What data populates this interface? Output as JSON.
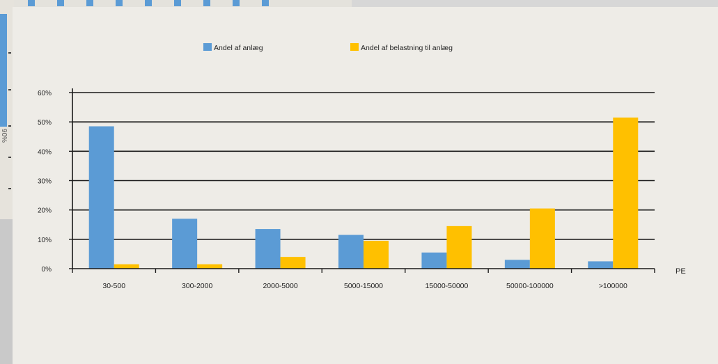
{
  "background": {
    "partial_axis_label": "%06"
  },
  "chart_data": {
    "type": "bar",
    "categories": [
      "30-500",
      "300-2000",
      "2000-5000",
      "5000-15000",
      "15000-50000",
      "50000-100000",
      ">100000"
    ],
    "series": [
      {
        "name": "Andel af anlæg",
        "color": "#5b9bd5",
        "values": [
          48.5,
          17,
          13.5,
          11.5,
          5.5,
          3,
          2.5
        ]
      },
      {
        "name": "Andel af belastning til anlæg",
        "color": "#ffc000",
        "values": [
          1.5,
          1.5,
          4,
          9.5,
          14.5,
          20.5,
          51.5
        ]
      }
    ],
    "y_ticks": [
      "0%",
      "10%",
      "20%",
      "30%",
      "40%",
      "50%",
      "60%"
    ],
    "ylim": [
      0,
      60
    ],
    "xlabel": "PE",
    "ylabel": "",
    "grid": true,
    "legend_position": "top"
  }
}
